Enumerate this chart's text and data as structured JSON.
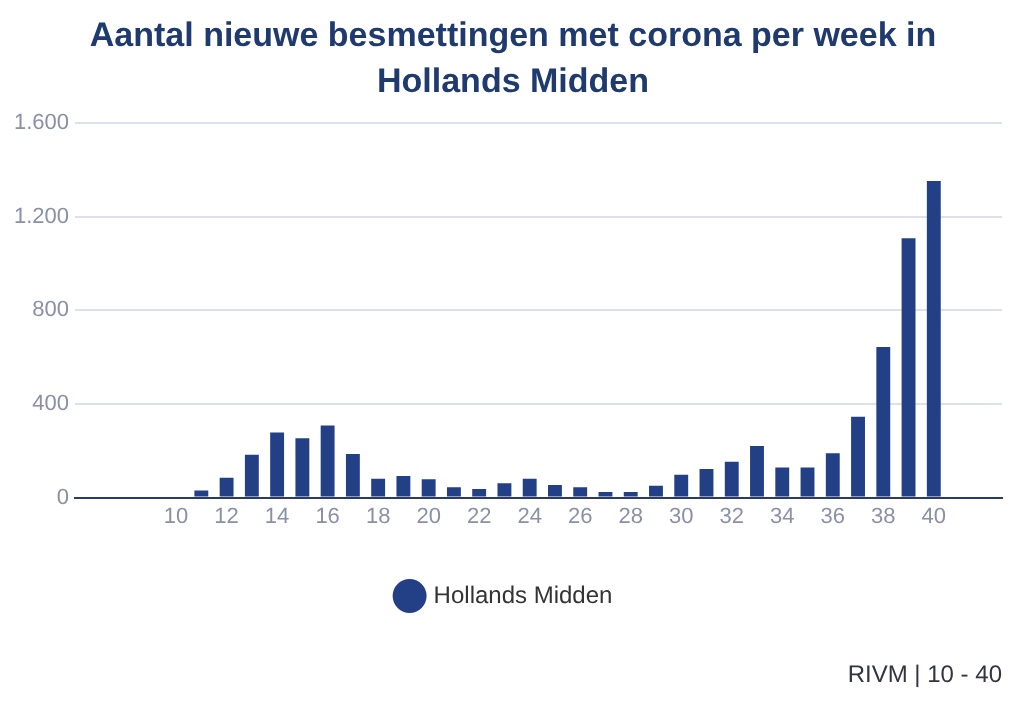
{
  "chart_data": {
    "type": "bar",
    "title": "Aantal nieuwe besmettingen met corona per week in Hollands Midden",
    "x": [
      10,
      11,
      12,
      13,
      14,
      15,
      16,
      17,
      18,
      19,
      20,
      21,
      22,
      23,
      24,
      25,
      26,
      27,
      28,
      29,
      30,
      31,
      32,
      33,
      34,
      35,
      36,
      37,
      38,
      39,
      40
    ],
    "series": [
      {
        "name": "Hollands Midden",
        "color": "#233f85",
        "values": [
          5,
          30,
          85,
          183,
          278,
          254,
          308,
          186,
          81,
          92,
          78,
          44,
          37,
          61,
          81,
          54,
          44,
          24,
          24,
          51,
          98,
          122,
          153,
          220,
          129,
          129,
          190,
          346,
          644,
          1108,
          1353
        ]
      }
    ],
    "xlim": [
      6,
      42.7
    ],
    "xticks": [
      10,
      12,
      14,
      16,
      18,
      20,
      22,
      24,
      26,
      28,
      30,
      32,
      34,
      36,
      38,
      40
    ],
    "ylim": [
      0,
      1600
    ],
    "yticks": [
      {
        "value": 0,
        "label": "0"
      },
      {
        "value": 400,
        "label": "400"
      },
      {
        "value": 800,
        "label": "800"
      },
      {
        "value": 1200,
        "label": "1.200"
      },
      {
        "value": 1600,
        "label": "1.600"
      }
    ],
    "grid": "y",
    "legend": "bottom",
    "annotations": [
      "RIVM | 10 - 40"
    ]
  }
}
